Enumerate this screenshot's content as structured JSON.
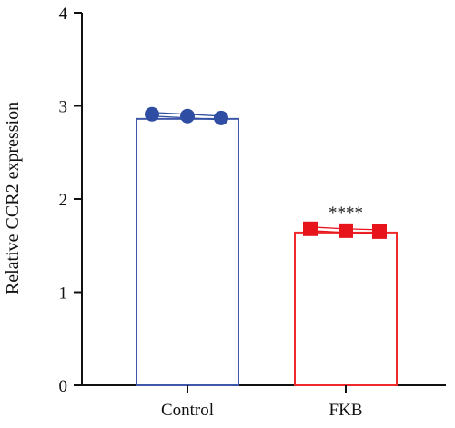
{
  "chart_data": {
    "type": "bar",
    "categories": [
      "Control",
      "FKB"
    ],
    "values": [
      2.86,
      1.64
    ],
    "ylabel": "Relative CCR2 expression",
    "ylim": [
      0,
      4
    ],
    "yticks": [
      "0",
      "1",
      "2",
      "3",
      "4"
    ],
    "grid": false,
    "colors": [
      "#3f57a8",
      "#ee2a2a"
    ],
    "marker_colors": [
      "#2f4ea3",
      "#e8141c"
    ],
    "markers": [
      "circle",
      "square"
    ],
    "points": [
      [
        2.91,
        2.89,
        2.87
      ],
      [
        1.68,
        1.66,
        1.65
      ]
    ],
    "annotations": [
      {
        "category": "FKB",
        "text": "****"
      }
    ]
  }
}
